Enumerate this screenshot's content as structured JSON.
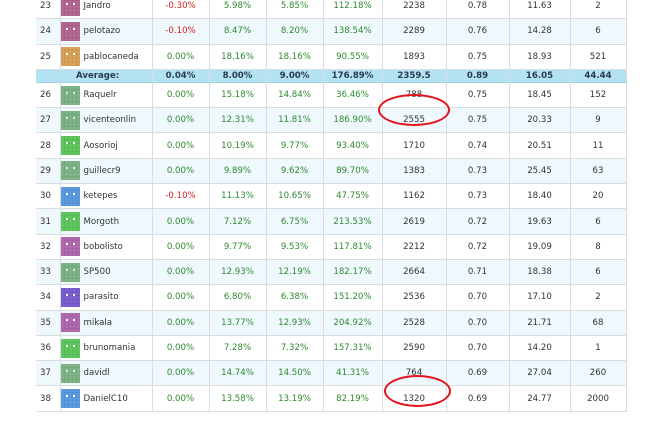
{
  "table": {
    "rows": [
      {
        "rank": "23",
        "user": "Jandro",
        "avatar": "jandro-icon",
        "c1": "-0.30%",
        "c2": "5.98%",
        "c3": "5.85%",
        "c4": "112.18%",
        "c5": "2238",
        "c6": "0.78",
        "c7": "11.63",
        "c8": "2",
        "neg": true
      },
      {
        "rank": "24",
        "user": "pelotazo",
        "avatar": "pelotazo-icon",
        "c1": "-0.10%",
        "c2": "8.47%",
        "c3": "8.20%",
        "c4": "138.54%",
        "c5": "2289",
        "c6": "0.76",
        "c7": "14.28",
        "c8": "6",
        "neg": true
      },
      {
        "rank": "25",
        "user": "pablocaneda",
        "avatar": "pablocaneda-icon",
        "c1": "0.00%",
        "c2": "18.16%",
        "c3": "18.16%",
        "c4": "90.55%",
        "c5": "1893",
        "c6": "0.75",
        "c7": "18.93",
        "c8": "521",
        "neg": false
      }
    ],
    "average": {
      "label": "Average:",
      "c1": "0.04%",
      "c2": "8.00%",
      "c3": "9.00%",
      "c4": "176.89%",
      "c5": "2359.5",
      "c6": "0.89",
      "c7": "16.05",
      "c8": "44.44"
    },
    "rows2": [
      {
        "rank": "26",
        "user": "Raquelr",
        "avatar": "raquelr-icon",
        "c1": "0.00%",
        "c2": "15.18%",
        "c3": "14.84%",
        "c4": "36.46%",
        "c5": "788",
        "c6": "0.75",
        "c7": "18.45",
        "c8": "152",
        "neg": false
      },
      {
        "rank": "27",
        "user": "vicenteonlin",
        "avatar": "vicenteonlin-icon",
        "c1": "0.00%",
        "c2": "12.31%",
        "c3": "11.81%",
        "c4": "186.90%",
        "c5": "2555",
        "c6": "0.75",
        "c7": "20.33",
        "c8": "9",
        "neg": false
      },
      {
        "rank": "28",
        "user": "Aosorioj",
        "avatar": "aosorioj-icon",
        "c1": "0.00%",
        "c2": "10.19%",
        "c3": "9.77%",
        "c4": "93.40%",
        "c5": "1710",
        "c6": "0.74",
        "c7": "20.51",
        "c8": "11",
        "neg": false
      },
      {
        "rank": "29",
        "user": "guillecr9",
        "avatar": "guillecr9-icon",
        "c1": "0.00%",
        "c2": "9.89%",
        "c3": "9.62%",
        "c4": "89.70%",
        "c5": "1383",
        "c6": "0.73",
        "c7": "25.45",
        "c8": "63",
        "neg": false
      },
      {
        "rank": "30",
        "user": "ketepes",
        "avatar": "ketepes-icon",
        "c1": "-0.10%",
        "c2": "11.13%",
        "c3": "10.65%",
        "c4": "47.75%",
        "c5": "1162",
        "c6": "0.73",
        "c7": "18.40",
        "c8": "20",
        "neg": true
      },
      {
        "rank": "31",
        "user": "Morgoth",
        "avatar": "morgoth-icon",
        "c1": "0.00%",
        "c2": "7.12%",
        "c3": "6.75%",
        "c4": "213.53%",
        "c5": "2619",
        "c6": "0.72",
        "c7": "19.63",
        "c8": "6",
        "neg": false
      },
      {
        "rank": "32",
        "user": "bobolisto",
        "avatar": "bobolisto-icon",
        "c1": "0.00%",
        "c2": "9.77%",
        "c3": "9.53%",
        "c4": "117.81%",
        "c5": "2212",
        "c6": "0.72",
        "c7": "19.09",
        "c8": "8",
        "neg": false
      },
      {
        "rank": "33",
        "user": "SP500",
        "avatar": "sp500-icon",
        "c1": "0.00%",
        "c2": "12.93%",
        "c3": "12.19%",
        "c4": "182.17%",
        "c5": "2664",
        "c6": "0.71",
        "c7": "18.38",
        "c8": "6",
        "neg": false
      },
      {
        "rank": "34",
        "user": "parasito",
        "avatar": "parasito-icon",
        "c1": "0.00%",
        "c2": "6.80%",
        "c3": "6.38%",
        "c4": "151.20%",
        "c5": "2536",
        "c6": "0.70",
        "c7": "17.10",
        "c8": "2",
        "neg": false
      },
      {
        "rank": "35",
        "user": "mikala",
        "avatar": "mikala-icon",
        "c1": "0.00%",
        "c2": "13.77%",
        "c3": "12.93%",
        "c4": "204.92%",
        "c5": "2528",
        "c6": "0.70",
        "c7": "21.71",
        "c8": "68",
        "neg": false
      },
      {
        "rank": "36",
        "user": "brunomania",
        "avatar": "brunomania-icon",
        "c1": "0.00%",
        "c2": "7.28%",
        "c3": "7.32%",
        "c4": "157.31%",
        "c5": "2590",
        "c6": "0.70",
        "c7": "14.20",
        "c8": "1",
        "neg": false
      },
      {
        "rank": "37",
        "user": "davidl",
        "avatar": "davidl-icon",
        "c1": "0.00%",
        "c2": "14.74%",
        "c3": "14.50%",
        "c4": "41.31%",
        "c5": "764",
        "c6": "0.69",
        "c7": "27.04",
        "c8": "260",
        "neg": false
      },
      {
        "rank": "38",
        "user": "DanielC10",
        "avatar": "danielc10-icon",
        "c1": "0.00%",
        "c2": "13.58%",
        "c3": "13.19%",
        "c4": "82.19%",
        "c5": "1320",
        "c6": "0.69",
        "c7": "24.77",
        "c8": "2000",
        "neg": false
      }
    ]
  },
  "colors": {
    "negative": "#d62020",
    "positive": "#2e8a2e",
    "average_bg": "#b3e2f2",
    "row_alt_bg": "#eef8fd",
    "highlight_ring": "#e2141c"
  }
}
